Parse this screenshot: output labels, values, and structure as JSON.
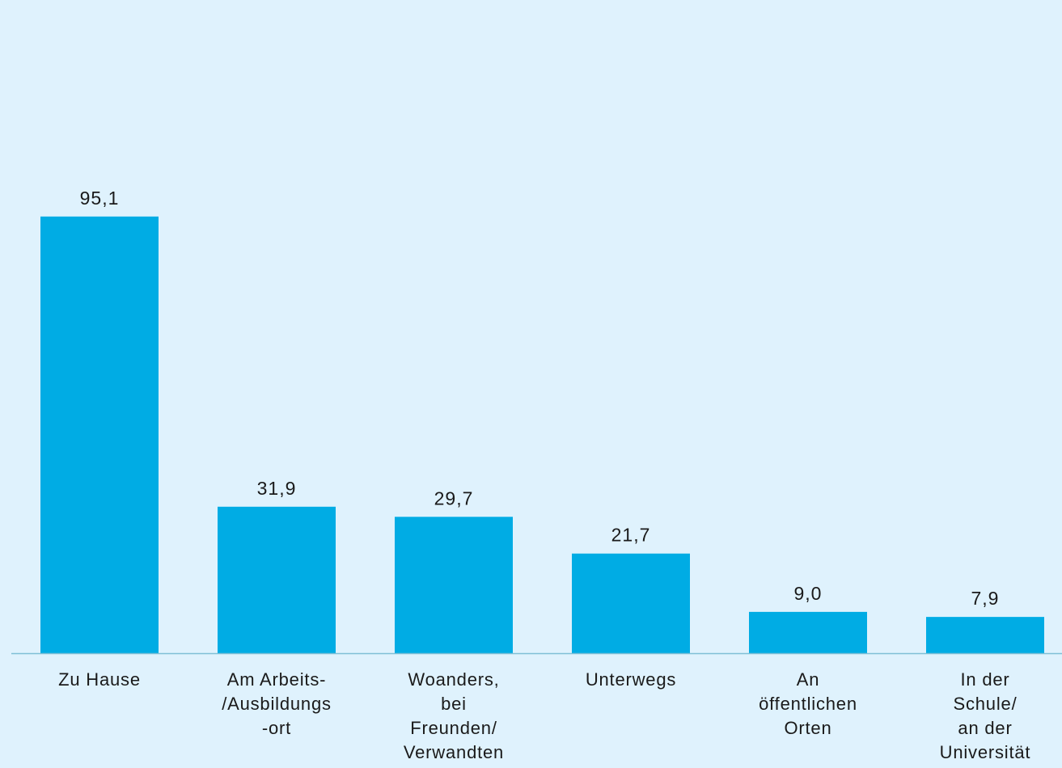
{
  "chart_data": {
    "type": "bar",
    "categories": [
      [
        "Zu Hause"
      ],
      [
        "Am Arbeits-",
        "/Ausbildungs",
        "-ort"
      ],
      [
        "Woanders,",
        "bei",
        "Freunden/",
        "Verwandten"
      ],
      [
        "Unterwegs"
      ],
      [
        "An",
        "öffentlichen",
        "Orten"
      ],
      [
        "In der",
        "Schule/",
        "an der",
        "Universität"
      ]
    ],
    "values": [
      95.1,
      31.9,
      29.7,
      21.7,
      9.0,
      7.9
    ],
    "value_labels": [
      "95,1",
      "31,9",
      "29,7",
      "21,7",
      "9,0",
      "7,9"
    ],
    "ylim": [
      0,
      100
    ],
    "grid": false,
    "bar_color": "#00ace4",
    "axis_color": "#7fbfd6"
  }
}
